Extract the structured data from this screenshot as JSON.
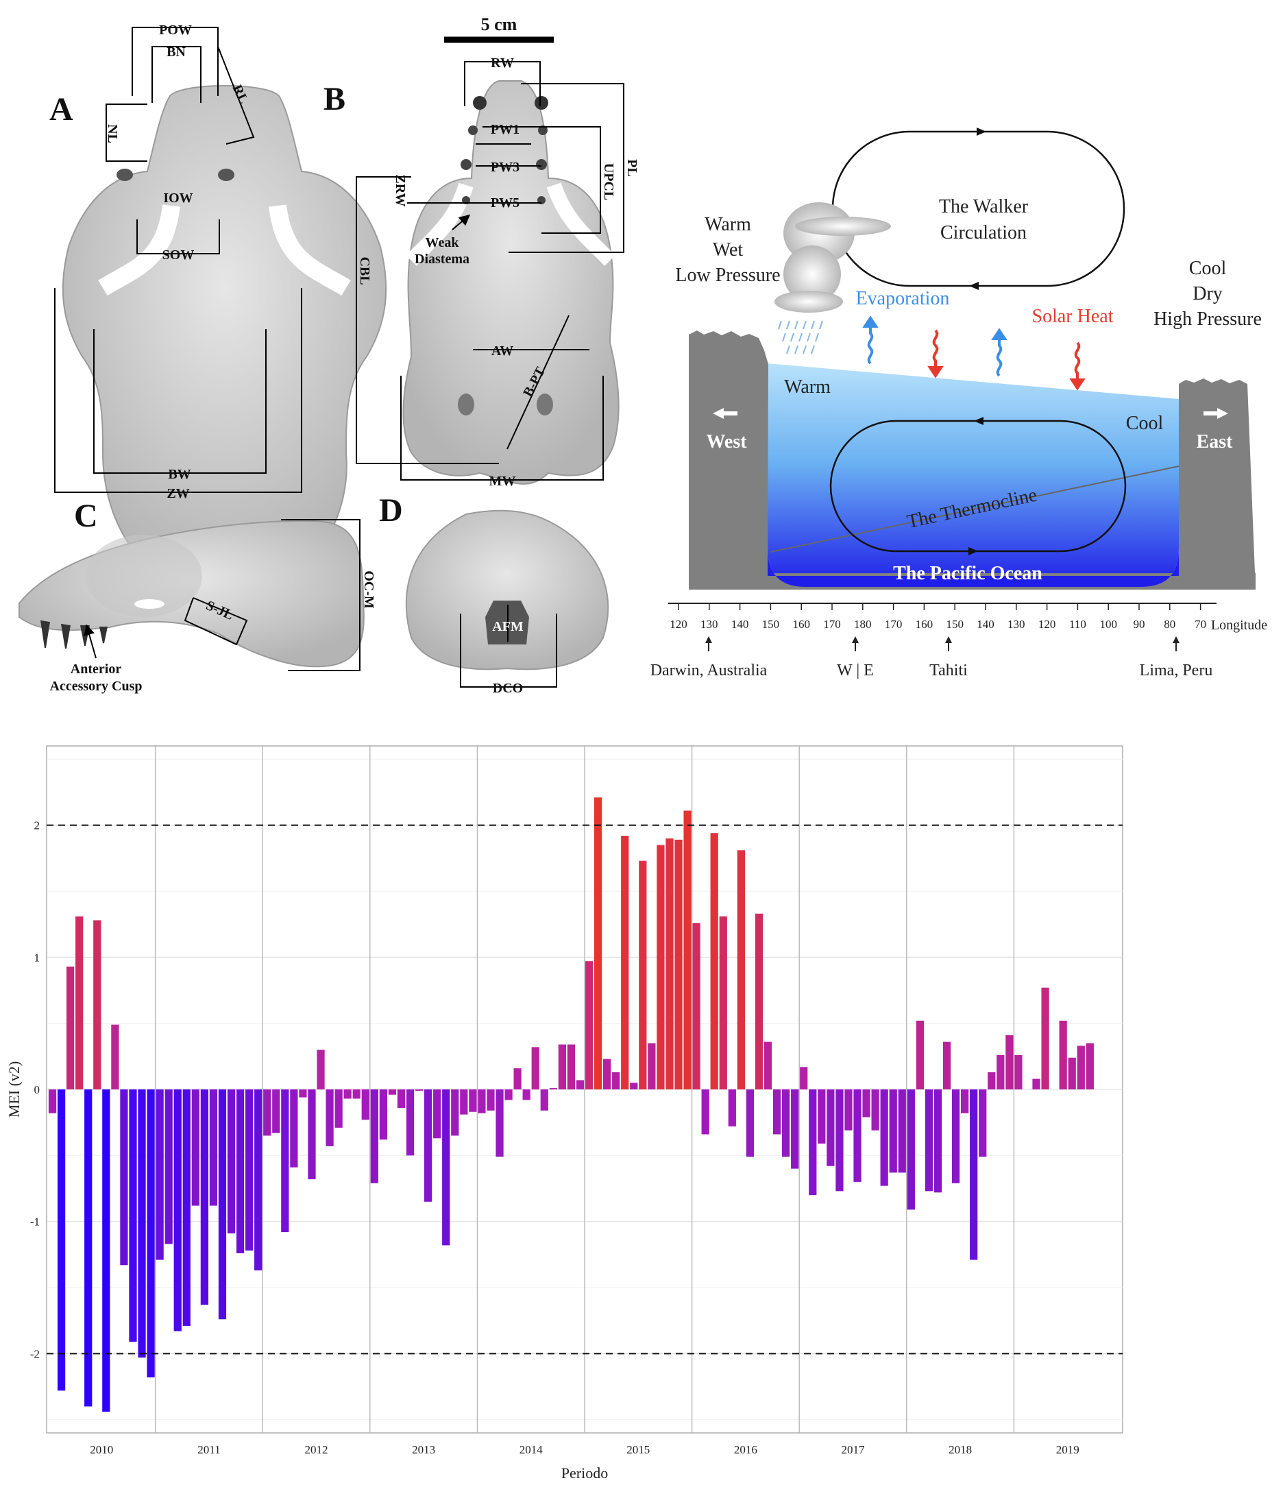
{
  "skull": {
    "scale_label": "5 cm",
    "panels": {
      "a": "A",
      "b": "B",
      "c": "C",
      "d": "D"
    },
    "a_labels": {
      "pow": "POW",
      "bn": "BN",
      "rl": "RL",
      "nl": "NL",
      "iow": "IOW",
      "sow": "SOW",
      "bw": "BW",
      "zw": "ZW"
    },
    "b_labels": {
      "rw": "RW",
      "pw1": "PW1",
      "pw3": "PW3",
      "pw5": "PW5",
      "pl": "PL",
      "upcl": "UPCL",
      "zrw": "ZRW",
      "cbl": "CBL",
      "weak_line1": "Weak",
      "weak_line2": "Diastema",
      "aw": "AW",
      "bpt": "B-PT",
      "mw": "MW"
    },
    "c_labels": {
      "ocm": "OC-M",
      "sjl": "S-JL",
      "cusp_line1": "Anterior",
      "cusp_line2": "Accessory Cusp"
    },
    "d_labels": {
      "afm": "AFM",
      "dco": "DCO"
    }
  },
  "walker": {
    "title_line1": "The Walker",
    "title_line2": "Circulation",
    "west_climate": [
      "Warm",
      "Wet",
      "Low Pressure"
    ],
    "east_climate": [
      "Cool",
      "Dry",
      "High Pressure"
    ],
    "evaporation": "Evaporation",
    "solar_heat": "Solar Heat",
    "warm": "Warm",
    "cool": "Cool",
    "west": "West",
    "east": "East",
    "thermocline": "The Thermocline",
    "ocean": "The Pacific Ocean",
    "longitude_ticks": [
      "120",
      "130",
      "140",
      "150",
      "160",
      "170",
      "180",
      "170",
      "160",
      "150",
      "140",
      "130",
      "120",
      "110",
      "100",
      "90",
      "80",
      "70"
    ],
    "longitude_label": "Longitude",
    "places": [
      "Darwin, Australia",
      "W | E",
      "Tahiti",
      "Lima, Peru"
    ],
    "colors": {
      "land": "#808080",
      "evaporation": "#3a8ee8",
      "solar_heat": "#e33b2e",
      "ocean_top": "#b8e2fb",
      "ocean_bottom": "#1f1ee8"
    }
  },
  "chart_data": {
    "type": "bar",
    "xlabel": "Periodo",
    "ylabel": "MEI (v2)",
    "ylim": [
      -2.6,
      2.6
    ],
    "yticks": [
      -2,
      -1,
      0,
      1,
      2
    ],
    "reference_lines": [
      2,
      -2
    ],
    "years": [
      "2010",
      "2011",
      "2012",
      "2013",
      "2014",
      "2015",
      "2016",
      "2017",
      "2018",
      "2019"
    ],
    "months_per_year": 12,
    "color_scale": {
      "low": "#2a00ff",
      "mid": "#b01fb0",
      "high": "#e8352a"
    },
    "grid": true,
    "values": [
      -0.18,
      -2.28,
      0.93,
      1.31,
      -2.4,
      1.28,
      -2.44,
      0.49,
      -1.33,
      -1.91,
      -2.03,
      -2.18,
      -1.29,
      -1.17,
      -1.83,
      -1.79,
      -0.88,
      -1.63,
      -0.88,
      -1.74,
      -1.09,
      -1.24,
      -1.22,
      -1.37,
      -0.35,
      -0.33,
      -1.08,
      -0.59,
      -0.06,
      -0.68,
      0.3,
      -0.43,
      -0.29,
      -0.07,
      -0.07,
      -0.23,
      -0.71,
      -0.38,
      -0.04,
      -0.14,
      -0.5,
      -0.01,
      -0.85,
      -0.37,
      -1.18,
      -0.35,
      -0.19,
      -0.17,
      -0.18,
      -0.16,
      -0.51,
      -0.08,
      0.16,
      -0.08,
      0.32,
      -0.16,
      0.01,
      0.34,
      0.34,
      0.07,
      0.97,
      2.21,
      0.23,
      0.13,
      1.92,
      0.05,
      1.73,
      0.35,
      1.85,
      1.9,
      1.89,
      2.11,
      1.26,
      -0.34,
      1.94,
      1.31,
      -0.28,
      1.81,
      -0.51,
      1.33,
      0.36,
      -0.34,
      -0.51,
      -0.6,
      0.17,
      -0.8,
      -0.41,
      -0.58,
      -0.77,
      -0.31,
      -0.7,
      -0.21,
      -0.31,
      -0.73,
      -0.63,
      -0.63,
      -0.91,
      0.52,
      -0.77,
      -0.78,
      0.36,
      -0.71,
      -0.18,
      -1.29,
      -0.51,
      0.13,
      0.26,
      0.41,
      0.26,
      0.0,
      0.08,
      0.77,
      0.0,
      0.52,
      0.24,
      0.33,
      0.35
    ]
  }
}
